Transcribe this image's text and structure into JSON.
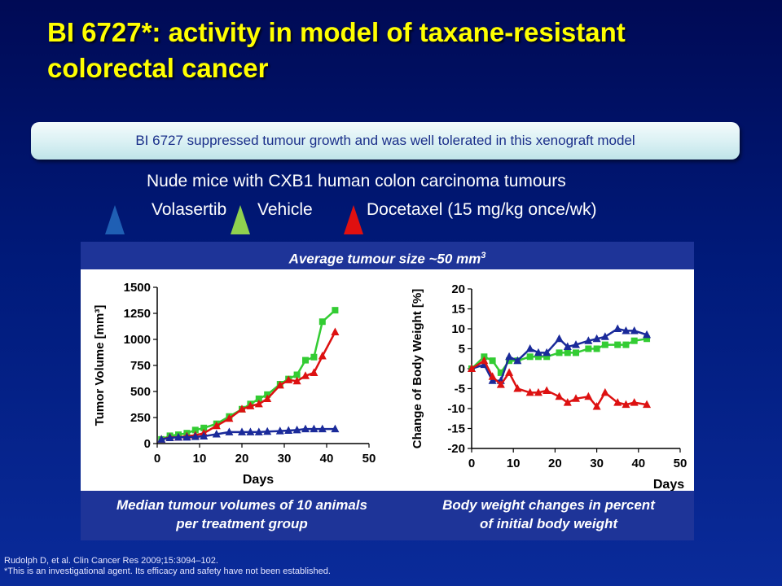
{
  "slide": {
    "title": "BI 6727*: activity in model of taxane-resistant colorectal cancer",
    "banner": "BI 6727 suppressed tumour growth and was well tolerated in this xenograft model",
    "subtitle": "Nude mice with CXB1 human colon carcinoma tumours",
    "legend": [
      {
        "label": "Volasertib",
        "color": "#1f5fb4"
      },
      {
        "label": "Vehicle",
        "color": "#8fd14f"
      },
      {
        "label": "Docetaxel (15 mg/kg once/wk)",
        "color": "#e01010"
      }
    ],
    "panel_header": "Average tumour size ~50 mm",
    "panel_header_sup": "3",
    "caption_left": [
      "Median tumour volumes of 10 animals",
      "per treatment group"
    ],
    "caption_right": [
      "Body weight changes in percent",
      "of initial body weight"
    ],
    "reference": "Rudolph D, et al. Clin Cancer Res 2009;15:3094–102.",
    "footnote": "*This is an investigational agent. Its efficacy and safety have not been established."
  },
  "chart_data": [
    {
      "type": "line",
      "xlabel": "Days",
      "ylabel": "Tumor Volume [mm³]",
      "xlim": [
        0,
        50
      ],
      "ylim": [
        0,
        1500
      ],
      "xticks": [
        0,
        10,
        20,
        30,
        40,
        50
      ],
      "yticks": [
        0,
        250,
        500,
        750,
        1000,
        1250,
        1500
      ],
      "series": [
        {
          "marker": "square",
          "color": "#33cc33",
          "x": [
            1,
            3,
            5,
            7,
            9,
            11,
            14,
            17,
            20,
            22,
            24,
            26,
            29,
            31,
            33,
            35,
            37,
            39,
            42
          ],
          "y": [
            40,
            75,
            85,
            100,
            130,
            150,
            190,
            260,
            330,
            380,
            430,
            470,
            570,
            620,
            660,
            800,
            830,
            1170,
            1280
          ]
        },
        {
          "marker": "triangle",
          "color": "#dd1111",
          "x": [
            1,
            3,
            5,
            7,
            9,
            11,
            14,
            17,
            20,
            22,
            24,
            26,
            29,
            31,
            33,
            35,
            37,
            39,
            42
          ],
          "y": [
            40,
            60,
            60,
            70,
            80,
            100,
            170,
            240,
            330,
            360,
            380,
            430,
            560,
            610,
            600,
            650,
            680,
            840,
            1070
          ]
        },
        {
          "marker": "triangle",
          "color": "#1a2a9a",
          "x": [
            1,
            3,
            5,
            7,
            9,
            11,
            14,
            17,
            20,
            22,
            24,
            26,
            29,
            31,
            33,
            35,
            37,
            39,
            42
          ],
          "y": [
            40,
            55,
            60,
            60,
            65,
            70,
            90,
            110,
            110,
            110,
            110,
            115,
            120,
            125,
            130,
            140,
            140,
            140,
            140
          ]
        }
      ]
    },
    {
      "type": "line",
      "xlabel": "Days",
      "ylabel": "Change of Body Weight [%]",
      "xlim": [
        0,
        50
      ],
      "ylim": [
        -20,
        20
      ],
      "xticks": [
        0,
        10,
        20,
        30,
        40,
        50
      ],
      "yticks": [
        -20,
        -15,
        -10,
        -5,
        0,
        5,
        10,
        15,
        20
      ],
      "series": [
        {
          "marker": "square",
          "color": "#33cc33",
          "x": [
            0,
            3,
            5,
            7,
            9,
            11,
            14,
            16,
            18,
            21,
            23,
            25,
            28,
            30,
            32,
            35,
            37,
            39,
            42
          ],
          "y": [
            0,
            3,
            2,
            -1,
            2,
            2,
            3,
            3,
            3,
            4,
            4,
            4,
            5,
            5,
            6,
            6,
            6,
            7,
            7.5
          ]
        },
        {
          "marker": "triangle",
          "color": "#1a2a9a",
          "x": [
            0,
            3,
            5,
            7,
            9,
            11,
            14,
            16,
            18,
            21,
            23,
            25,
            28,
            30,
            32,
            35,
            37,
            39,
            42
          ],
          "y": [
            0,
            1,
            -3,
            -3,
            3,
            2,
            5,
            4,
            4,
            7.5,
            5.5,
            6,
            7,
            7.5,
            8,
            10,
            9.5,
            9.5,
            8.5
          ]
        },
        {
          "marker": "triangle",
          "color": "#dd1111",
          "x": [
            0,
            3,
            5,
            7,
            9,
            11,
            14,
            16,
            18,
            21,
            23,
            25,
            28,
            30,
            32,
            35,
            37,
            39,
            42
          ],
          "y": [
            0,
            2,
            -2,
            -4,
            -1,
            -5,
            -6,
            -6,
            -5.5,
            -7,
            -8.5,
            -7.5,
            -7,
            -9.5,
            -6,
            -8.5,
            -9,
            -8.5,
            -9
          ]
        }
      ]
    }
  ]
}
